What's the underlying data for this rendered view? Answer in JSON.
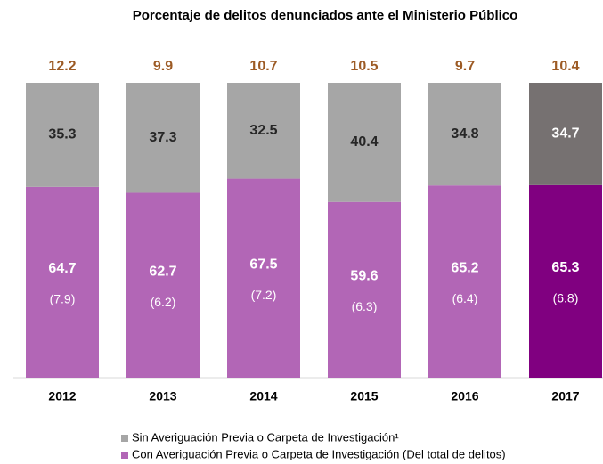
{
  "chart_data": {
    "type": "stacked_bar",
    "title": "Porcentaje de delitos denunciados ante el Ministerio Público",
    "categories": [
      "2012",
      "2013",
      "2014",
      "2015",
      "2016",
      "2017"
    ],
    "series": [
      {
        "name": "Con Averiguación Previa o Carpeta de Investigación (Del total de delitos)",
        "color": "#b266b6",
        "point_colors": [
          "#b266b6",
          "#b266b6",
          "#b266b6",
          "#b266b6",
          "#b266b6",
          "#800080"
        ],
        "values": [
          64.7,
          62.7,
          67.5,
          59.6,
          65.2,
          65.3
        ],
        "sub_values": [
          {
            "value": 7.9,
            "label": "(7.9)"
          },
          {
            "value": 6.2,
            "label": "(6.2)"
          },
          {
            "value": 7.2,
            "label": "(7.2)"
          },
          {
            "value": 6.3,
            "label": "(6.3)"
          },
          {
            "value": 6.4,
            "label": "(6.4)"
          },
          {
            "value": 6.8,
            "label": "(6.8)"
          }
        ]
      },
      {
        "name": "Sin Averiguación Previa o Carpeta de Investigación¹",
        "color": "#a6a6a6",
        "point_colors": [
          "#a6a6a6",
          "#a6a6a6",
          "#a6a6a6",
          "#a6a6a6",
          "#a6a6a6",
          "#767171"
        ],
        "values": [
          35.3,
          37.3,
          32.5,
          40.4,
          34.8,
          34.7
        ]
      }
    ],
    "top_values": [
      12.2,
      9.9,
      10.7,
      10.5,
      9.7,
      10.4
    ],
    "top_color": "#9c5a24"
  }
}
